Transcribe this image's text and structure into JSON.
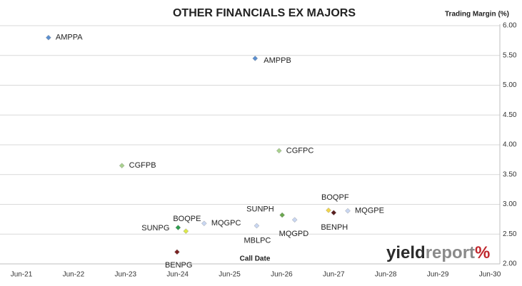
{
  "chart_data": {
    "type": "scatter",
    "title": "OTHER FINANCIALS EX MAJORS",
    "y_label": "Trading Margin (%)",
    "x_label": "Call Date",
    "logo": [
      "yield",
      "report",
      "%"
    ],
    "xlim": [
      2021.5,
      2030.5
    ],
    "xticks": [
      {
        "value": 2021.5,
        "label": "Jun-21"
      },
      {
        "value": 2022.5,
        "label": "Jun-22"
      },
      {
        "value": 2023.5,
        "label": "Jun-23"
      },
      {
        "value": 2024.5,
        "label": "Jun-24"
      },
      {
        "value": 2025.5,
        "label": "Jun-25"
      },
      {
        "value": 2026.5,
        "label": "Jun-26"
      },
      {
        "value": 2027.5,
        "label": "Jun-27"
      },
      {
        "value": 2028.5,
        "label": "Jun-28"
      },
      {
        "value": 2029.5,
        "label": "Jun-29"
      },
      {
        "value": 2030.5,
        "label": "Jun-30"
      }
    ],
    "ylim": [
      2,
      6
    ],
    "yticks": [
      {
        "value": 2,
        "label": "2.00"
      },
      {
        "value": 2.5,
        "label": "2.50"
      },
      {
        "value": 3,
        "label": "3.00"
      },
      {
        "value": 3.5,
        "label": "3.50"
      },
      {
        "value": 4,
        "label": "4.00"
      },
      {
        "value": 4.5,
        "label": "4.50"
      },
      {
        "value": 5,
        "label": "5.00"
      },
      {
        "value": 5.5,
        "label": "5.50"
      },
      {
        "value": 6,
        "label": "6.00"
      }
    ],
    "grid": true,
    "series": [
      {
        "name": "AMPPA",
        "color": "#5b8fd0",
        "x": [
          2022.02
        ],
        "values": [
          5.8
        ]
      },
      {
        "name": "AMPPB",
        "color": "#5b8fd0",
        "x": [
          2025.99
        ],
        "values": [
          5.45
        ]
      },
      {
        "name": "CGFPB",
        "color": "#a9d18e",
        "x": [
          2023.43
        ],
        "values": [
          3.65
        ]
      },
      {
        "name": "CGFPC",
        "color": "#a9d18e",
        "x": [
          2026.45
        ],
        "values": [
          3.9
        ]
      },
      {
        "name": "BOQPF",
        "color": "#f2d64b",
        "x": [
          2027.4
        ],
        "values": [
          2.9
        ]
      },
      {
        "name": "BENPH",
        "color": "#5a1f1f",
        "x": [
          2027.5
        ],
        "values": [
          2.86
        ]
      },
      {
        "name": "MQGPE",
        "color": "#c9d7f2",
        "x": [
          2027.77
        ],
        "values": [
          2.89
        ]
      },
      {
        "name": "SUNPH",
        "color": "#6aa84f",
        "x": [
          2026.51
        ],
        "values": [
          2.82
        ]
      },
      {
        "name": "MQGPD",
        "color": "#c9d7f2",
        "x": [
          2026.75
        ],
        "values": [
          2.74
        ]
      },
      {
        "name": "MBLPC",
        "color": "#c9d7f2",
        "x": [
          2026.02
        ],
        "values": [
          2.64
        ]
      },
      {
        "name": "MQGPC",
        "color": "#c9d7f2",
        "x": [
          2025.01
        ],
        "values": [
          2.68
        ]
      },
      {
        "name": "BOQPE",
        "color": "#dbe84a",
        "x": [
          2024.66
        ],
        "values": [
          2.55
        ]
      },
      {
        "name": "SUNPG",
        "color": "#2e9e4f",
        "x": [
          2024.51
        ],
        "values": [
          2.61
        ]
      },
      {
        "name": "BENPG",
        "color": "#7a2222",
        "x": [
          2024.49
        ],
        "values": [
          2.2
        ]
      }
    ]
  }
}
